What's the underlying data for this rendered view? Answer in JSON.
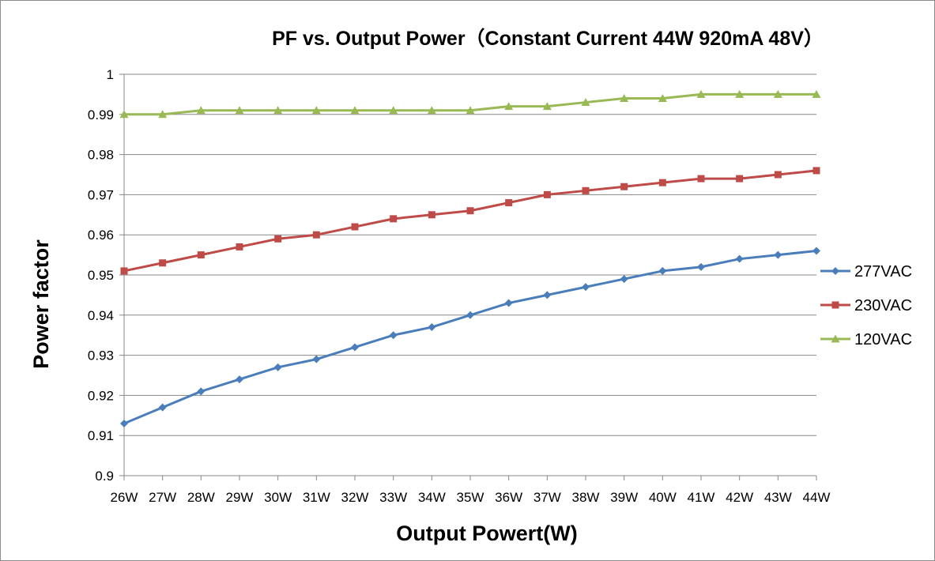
{
  "chart_data": {
    "type": "line",
    "title": "PF vs. Output Power（Constant Current 44W 920mA 48V）",
    "xlabel": "Output Powert(W)",
    "ylabel": "Power factor",
    "ylim": [
      0.9,
      1
    ],
    "yticks": [
      "0.9",
      "0.91",
      "0.92",
      "0.93",
      "0.94",
      "0.95",
      "0.96",
      "0.97",
      "0.98",
      "0.99",
      "1"
    ],
    "grid": true,
    "legend_position": "right",
    "categories": [
      "26W",
      "27W",
      "28W",
      "29W",
      "30W",
      "31W",
      "32W",
      "33W",
      "34W",
      "35W",
      "36W",
      "37W",
      "38W",
      "39W",
      "40W",
      "41W",
      "42W",
      "43W",
      "44W"
    ],
    "series": [
      {
        "name": "277VAC",
        "color": "#4a7ebb",
        "marker": "diamond",
        "values": [
          0.913,
          0.917,
          0.921,
          0.924,
          0.927,
          0.929,
          0.932,
          0.935,
          0.937,
          0.94,
          0.943,
          0.945,
          0.947,
          0.949,
          0.951,
          0.952,
          0.954,
          0.955,
          0.956
        ]
      },
      {
        "name": "230VAC",
        "color": "#be4b48",
        "marker": "square",
        "values": [
          0.951,
          0.953,
          0.955,
          0.957,
          0.959,
          0.96,
          0.962,
          0.964,
          0.965,
          0.966,
          0.968,
          0.97,
          0.971,
          0.972,
          0.973,
          0.974,
          0.974,
          0.975,
          0.976
        ]
      },
      {
        "name": "120VAC",
        "color": "#98b954",
        "marker": "triangle",
        "values": [
          0.99,
          0.99,
          0.991,
          0.991,
          0.991,
          0.991,
          0.991,
          0.991,
          0.991,
          0.991,
          0.992,
          0.992,
          0.993,
          0.994,
          0.994,
          0.995,
          0.995,
          0.995,
          0.995
        ]
      }
    ]
  }
}
